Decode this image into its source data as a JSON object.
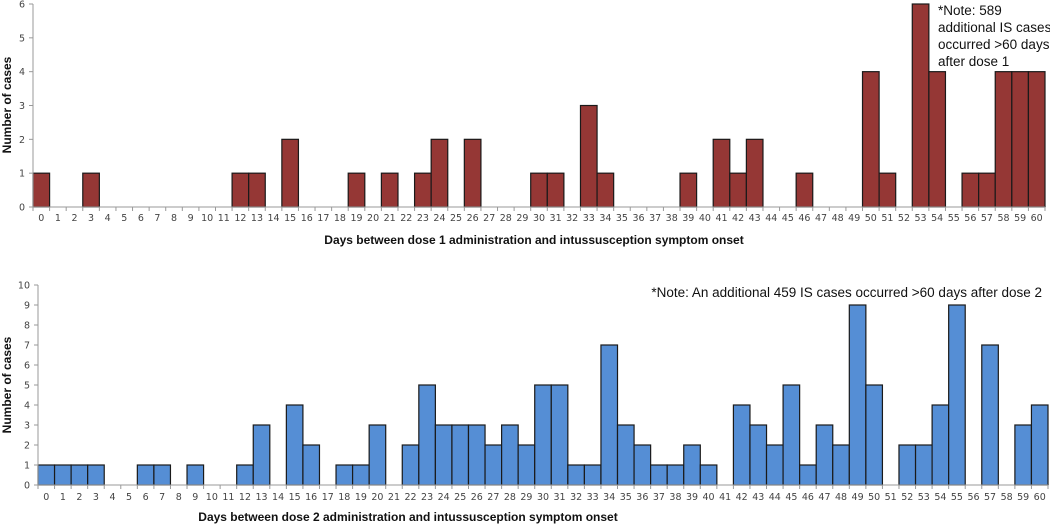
{
  "chart_data": [
    {
      "type": "bar",
      "title": "",
      "xlabel": "Days between dose 1 administration and intussusception symptom onset",
      "ylabel": "Number of cases",
      "ylim": [
        0,
        6
      ],
      "yticks": [
        0,
        1,
        2,
        3,
        4,
        5,
        6
      ],
      "grid": false,
      "color": "#953735",
      "note_lines": [
        "*Note:  589",
        "additional  IS cases",
        "occurred >60 days",
        "after dose 1"
      ],
      "categories": [
        0,
        1,
        2,
        3,
        4,
        5,
        6,
        7,
        8,
        9,
        10,
        11,
        12,
        13,
        14,
        15,
        16,
        17,
        18,
        19,
        20,
        21,
        22,
        23,
        24,
        25,
        26,
        27,
        28,
        29,
        30,
        31,
        32,
        33,
        34,
        35,
        36,
        37,
        38,
        39,
        40,
        41,
        42,
        43,
        44,
        45,
        46,
        47,
        48,
        49,
        50,
        51,
        52,
        53,
        54,
        55,
        56,
        57,
        58,
        59,
        60
      ],
      "values": [
        1,
        0,
        0,
        1,
        0,
        0,
        0,
        0,
        0,
        0,
        0,
        0,
        1,
        1,
        0,
        2,
        0,
        0,
        0,
        1,
        0,
        1,
        0,
        1,
        2,
        0,
        2,
        0,
        0,
        0,
        1,
        1,
        0,
        3,
        1,
        0,
        0,
        0,
        0,
        1,
        0,
        2,
        1,
        2,
        0,
        0,
        1,
        0,
        0,
        0,
        4,
        1,
        0,
        6,
        4,
        0,
        1,
        1,
        4,
        4,
        4
      ]
    },
    {
      "type": "bar",
      "title": "",
      "xlabel": "Days between dose 2 administration and intussusception symptom onset",
      "ylabel": "Number of cases",
      "ylim": [
        0,
        10
      ],
      "yticks": [
        0,
        1,
        2,
        3,
        4,
        5,
        6,
        7,
        8,
        9,
        10
      ],
      "grid": false,
      "color": "#558ed5",
      "note_lines": [
        "*Note:  An additional 459 IS cases occurred >60 days after dose 2"
      ],
      "categories": [
        0,
        1,
        2,
        3,
        4,
        5,
        6,
        7,
        8,
        9,
        10,
        11,
        12,
        13,
        14,
        15,
        16,
        17,
        18,
        19,
        20,
        21,
        22,
        23,
        24,
        25,
        26,
        27,
        28,
        29,
        30,
        31,
        32,
        33,
        34,
        35,
        36,
        37,
        38,
        39,
        40,
        41,
        42,
        43,
        44,
        45,
        46,
        47,
        48,
        49,
        50,
        51,
        52,
        53,
        54,
        55,
        56,
        57,
        58,
        59,
        60
      ],
      "values": [
        1,
        1,
        1,
        1,
        0,
        0,
        1,
        1,
        0,
        1,
        0,
        0,
        1,
        3,
        0,
        4,
        2,
        0,
        1,
        1,
        3,
        0,
        2,
        5,
        3,
        3,
        3,
        2,
        3,
        2,
        5,
        5,
        1,
        1,
        7,
        3,
        2,
        1,
        1,
        2,
        1,
        0,
        4,
        3,
        2,
        5,
        1,
        3,
        2,
        9,
        5,
        0,
        2,
        2,
        4,
        9,
        0,
        7,
        0,
        3,
        4
      ]
    }
  ]
}
